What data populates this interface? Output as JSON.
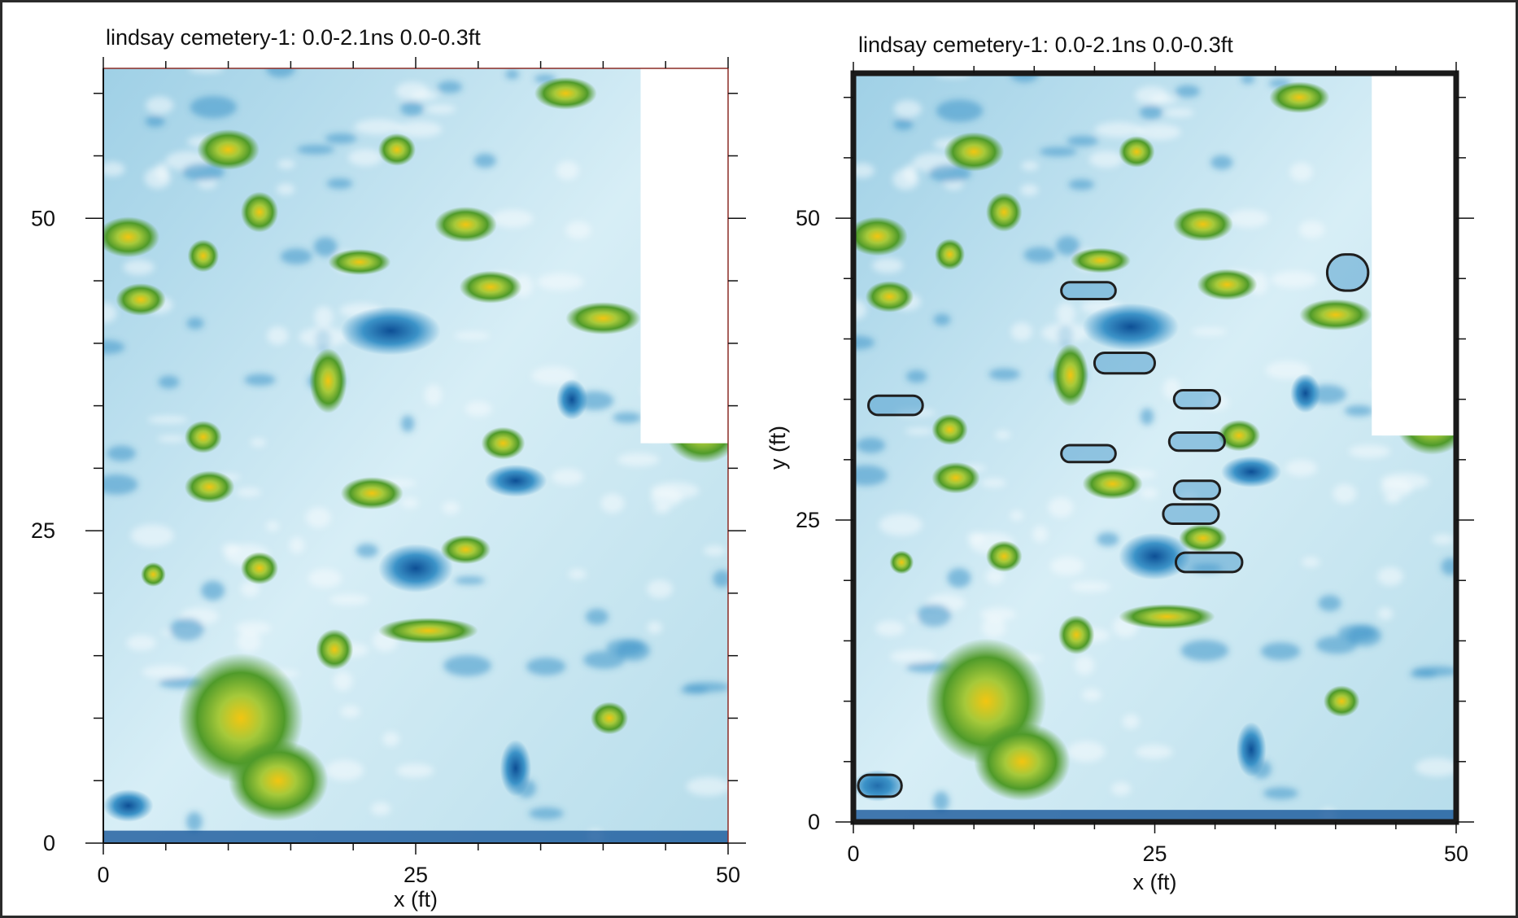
{
  "colors": {
    "deep_blue": "#0d4f95",
    "mid_blue": "#3c93c8",
    "light_blue": "#b4dcec",
    "white": "#f5fbfd",
    "green": "#4f9a2a",
    "light_green": "#86c23e",
    "yellow": "#f2c511",
    "outline": "#1f1f1f"
  },
  "chart_data": [
    {
      "type": "heatmap",
      "title": "lindsay cemetery-1:  0.0-2.1ns   0.0-0.3ft",
      "xlabel": "x (ft)",
      "ylabel": "",
      "xlim": [
        0,
        50
      ],
      "ylim": [
        0,
        62
      ],
      "x_tick_labels": [
        "0",
        "25",
        "50"
      ],
      "y_tick_labels": [
        "0",
        "25",
        "50"
      ],
      "x_major_ticks": [
        0,
        25,
        50
      ],
      "y_major_ticks": [
        0,
        25,
        50
      ],
      "color_scale": [
        "deep blue (low)",
        "light blue",
        "white",
        "green",
        "yellow (high)"
      ],
      "no_data_region": [
        {
          "x": [
            43,
            50
          ],
          "y": [
            32,
            62
          ]
        }
      ],
      "features": [
        {
          "x": 2,
          "y": 48.5,
          "w": 5,
          "h": 2.5,
          "value": "high"
        },
        {
          "x": 8,
          "y": 47,
          "w": 2.5,
          "h": 2,
          "value": "high"
        },
        {
          "x": 3,
          "y": 43.5,
          "w": 4,
          "h": 2,
          "value": "high"
        },
        {
          "x": 10,
          "y": 55.5,
          "w": 5,
          "h": 2.5,
          "value": "high"
        },
        {
          "x": 12.5,
          "y": 50.5,
          "w": 3,
          "h": 2.5,
          "value": "high"
        },
        {
          "x": 20.5,
          "y": 46.5,
          "w": 5,
          "h": 1.6,
          "value": "high"
        },
        {
          "x": 29,
          "y": 49.5,
          "w": 5,
          "h": 2.2,
          "value": "high"
        },
        {
          "x": 31,
          "y": 44.5,
          "w": 5,
          "h": 2,
          "value": "high"
        },
        {
          "x": 37,
          "y": 60,
          "w": 5,
          "h": 2,
          "value": "high"
        },
        {
          "x": 23.5,
          "y": 55.5,
          "w": 3,
          "h": 2,
          "value": "high"
        },
        {
          "x": 8,
          "y": 32.5,
          "w": 3,
          "h": 2,
          "value": "high"
        },
        {
          "x": 8.5,
          "y": 28.5,
          "w": 4,
          "h": 2,
          "value": "high"
        },
        {
          "x": 21.5,
          "y": 28,
          "w": 5,
          "h": 2,
          "value": "high"
        },
        {
          "x": 32,
          "y": 32,
          "w": 3.5,
          "h": 2,
          "value": "high"
        },
        {
          "x": 29,
          "y": 23.5,
          "w": 4,
          "h": 1.8,
          "value": "high"
        },
        {
          "x": 12.5,
          "y": 22,
          "w": 3,
          "h": 2,
          "value": "high"
        },
        {
          "x": 4,
          "y": 21.5,
          "w": 2,
          "h": 1.5,
          "value": "high"
        },
        {
          "x": 18.5,
          "y": 15.5,
          "w": 3,
          "h": 2.5,
          "value": "high"
        },
        {
          "x": 11,
          "y": 10,
          "w": 10,
          "h": 8,
          "value": "high"
        },
        {
          "x": 14,
          "y": 5,
          "w": 8,
          "h": 5,
          "value": "high"
        },
        {
          "x": 40.5,
          "y": 10,
          "w": 3,
          "h": 2,
          "value": "high"
        },
        {
          "x": 48,
          "y": 33,
          "w": 6,
          "h": 4,
          "value": "high"
        },
        {
          "x": 26,
          "y": 17,
          "w": 8,
          "h": 1.6,
          "value": "high"
        },
        {
          "x": 18,
          "y": 37,
          "w": 3,
          "h": 4,
          "value": "high"
        },
        {
          "x": 40,
          "y": 42,
          "w": 6,
          "h": 2,
          "value": "high"
        },
        {
          "x": 25,
          "y": 22,
          "w": 6,
          "h": 3,
          "value": "low"
        },
        {
          "x": 37.5,
          "y": 35.5,
          "w": 2.5,
          "h": 2.5,
          "value": "low"
        },
        {
          "x": 33,
          "y": 6,
          "w": 2.5,
          "h": 3.5,
          "value": "low"
        },
        {
          "x": 2,
          "y": 3,
          "w": 4,
          "h": 2,
          "value": "low"
        },
        {
          "x": 23,
          "y": 41,
          "w": 8,
          "h": 3,
          "value": "low"
        },
        {
          "x": 33,
          "y": 29,
          "w": 5,
          "h": 2,
          "value": "low"
        }
      ]
    },
    {
      "type": "heatmap",
      "title": "lindsay cemetery-1:  0.0-2.1ns   0.0-0.3ft",
      "xlabel": "x (ft)",
      "ylabel": "y (ft)",
      "xlim": [
        0,
        50
      ],
      "ylim": [
        0,
        62
      ],
      "x_tick_labels": [
        "0",
        "25",
        "50"
      ],
      "y_tick_labels": [
        "0",
        "25",
        "50"
      ],
      "x_major_ticks": [
        0,
        25,
        50
      ],
      "y_major_ticks": [
        0,
        25,
        50
      ],
      "same_data_as_left": true,
      "marked_anomalies": [
        {
          "x": 3.5,
          "y": 34.5,
          "w": 4.5,
          "h": 1.6
        },
        {
          "x": 19.5,
          "y": 44,
          "w": 4.5,
          "h": 1.4
        },
        {
          "x": 22.5,
          "y": 38,
          "w": 5,
          "h": 1.7
        },
        {
          "x": 19.5,
          "y": 30.5,
          "w": 4.5,
          "h": 1.4
        },
        {
          "x": 28.5,
          "y": 35,
          "w": 3.8,
          "h": 1.5
        },
        {
          "x": 28.5,
          "y": 31.5,
          "w": 4.6,
          "h": 1.5
        },
        {
          "x": 28.5,
          "y": 27.5,
          "w": 3.8,
          "h": 1.5
        },
        {
          "x": 28,
          "y": 25.5,
          "w": 4.6,
          "h": 1.6
        },
        {
          "x": 29.5,
          "y": 21.5,
          "w": 5.5,
          "h": 1.6
        },
        {
          "x": 41,
          "y": 45.5,
          "w": 3.4,
          "h": 3
        },
        {
          "x": 2.2,
          "y": 3,
          "w": 3.6,
          "h": 1.8
        }
      ]
    }
  ]
}
